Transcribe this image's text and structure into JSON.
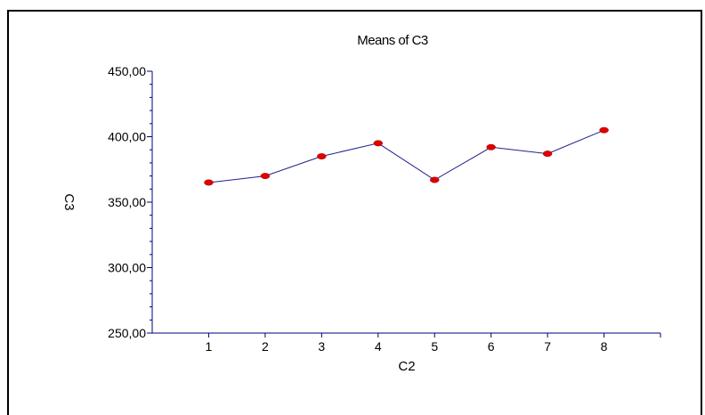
{
  "chart_data": {
    "type": "line",
    "title": "Means of C3",
    "xlabel": "C2",
    "ylabel": "C3",
    "categories": [
      "1",
      "2",
      "3",
      "4",
      "5",
      "6",
      "7",
      "8"
    ],
    "x": [
      1,
      2,
      3,
      4,
      5,
      6,
      7,
      8
    ],
    "values": [
      365,
      370,
      385,
      395,
      367,
      392,
      387,
      405
    ],
    "xlim": [
      0,
      9
    ],
    "ylim": [
      250,
      450
    ],
    "yticks": [
      "250,00",
      "300,00",
      "350,00",
      "400,00",
      "450,00"
    ],
    "ytick_values": [
      250,
      300,
      350,
      400,
      450
    ],
    "y_minor_step": 10,
    "grid": false,
    "colors": {
      "line": "#1f1f8f",
      "marker": "#dd0000",
      "axis": "#000080"
    }
  }
}
